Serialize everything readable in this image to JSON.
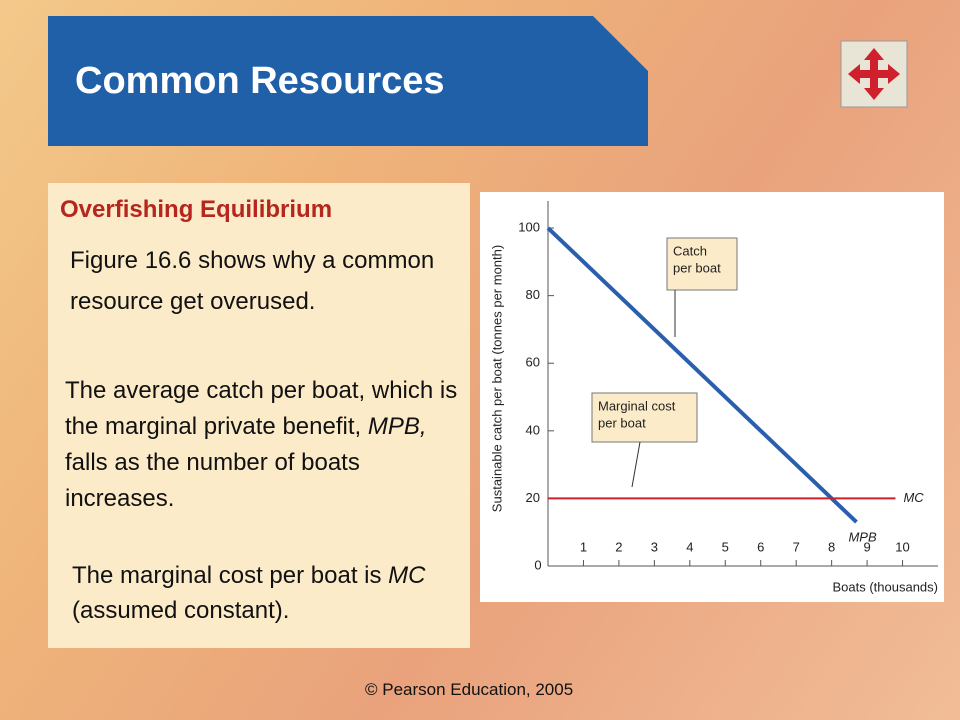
{
  "slide": {
    "title": "Common Resources",
    "subtitle": "Overfishing Equilibrium",
    "paragraph_1": "Figure 16.6 shows why a common resource get overused.",
    "paragraph_2": [
      "The average catch per boat, which is the marginal private benefit, ",
      "MPB,",
      " falls as the number of boats increases."
    ],
    "paragraph_3": [
      "The marginal cost per boat is ",
      "MC",
      " (assumed constant)."
    ],
    "footer": "© Pearson Education, 2005"
  },
  "chart_data": {
    "type": "line",
    "y_label": "Sustainable catch per boat (tonnes per month)",
    "x_label": "Boats (thousands)",
    "origin_label": "0",
    "xlim": [
      0,
      11
    ],
    "ylim": [
      0,
      108
    ],
    "xticks": [
      1,
      2,
      3,
      4,
      5,
      6,
      7,
      8,
      9,
      10
    ],
    "yticks": [
      20,
      40,
      60,
      80,
      100
    ],
    "series": [
      {
        "name": "MPB",
        "color": "#2a5fae",
        "x": [
          0,
          8.7
        ],
        "values": [
          100,
          13
        ]
      },
      {
        "name": "MC",
        "color": "#d0202e",
        "x": [
          0,
          9.8
        ],
        "values": [
          20,
          20
        ]
      }
    ],
    "annotations": [
      [
        "Catch",
        "per boat"
      ],
      [
        "Marginal cost",
        "per boat"
      ]
    ]
  }
}
